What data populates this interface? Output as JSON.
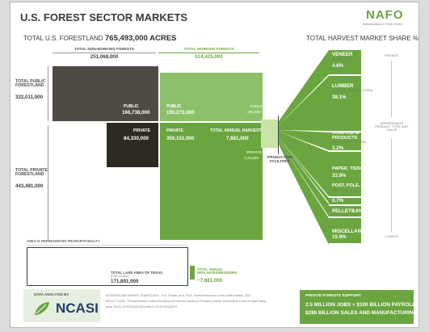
{
  "title": "U.S. FOREST SECTOR MARKETS",
  "logo": {
    "text": "NAFO",
    "tagline": "National Alliance of Forest Owners"
  },
  "total_forestland": {
    "label": "TOTAL U.S. FORESTLAND",
    "value": "765,493,000 ACRES"
  },
  "market_share_title": "TOTAL HARVEST MARKET SHARE %",
  "columns": {
    "non_working": {
      "label": "TOTAL NON-WORKING FORESTS",
      "value": "251,068,000"
    },
    "working": {
      "label": "TOTAL WORKING FORESTS",
      "value": "514,425,000"
    }
  },
  "rows": {
    "public": {
      "label": "TOTAL PUBLIC FORESTLAND",
      "value": "322,011,000"
    },
    "private": {
      "label": "TOTAL PRIVATE FORESTLAND",
      "value": "443,481,000"
    }
  },
  "cells": {
    "nw_public": {
      "label": "PUBLIC",
      "value": "166,738,000"
    },
    "nw_private": {
      "label": "PRIVATE",
      "value": "84,330,000"
    },
    "w_public": {
      "label": "PUBLIC",
      "value": "155,273,000"
    },
    "w_private": {
      "label": "PRIVATE",
      "value": "359,152,000"
    }
  },
  "harvest": {
    "label": "TOTAL ANNUAL HARVEST",
    "value": "7,881,000",
    "public_label": "PUBLIC",
    "public_value": "x00,000",
    "private_label": "PRIVATE",
    "private_value": "7,x0,000"
  },
  "production_facilities": "PRODUCTION FACILITIES",
  "products": [
    {
      "name": "VENEER",
      "sub": "(FURNITURE)",
      "pct": "4.6%"
    },
    {
      "name": "LUMBER",
      "sub": "(HOUSING, CONSTRUCTION)",
      "pct": "38.1%"
    },
    {
      "name": "COMPOSITE PRODUCTS",
      "sub": "(PARTICLEBOARD, OSB)",
      "pct": "3.2%"
    },
    {
      "name": "PAPER, TISSUE, AND PACKAGING",
      "sub": "",
      "pct": "33.9%"
    },
    {
      "name": "POST, POLE, PILING",
      "sub": "(UTILITY POLES)",
      "pct": "0.7%"
    },
    {
      "name": "PELLETS",
      "sub": "",
      "pct": "3.6%"
    },
    {
      "name": "MISCELLANEOUS",
      "sub": "",
      "pct": "15.9%"
    }
  ],
  "value_scale": {
    "highest": "HIGHEST",
    "middle": "APPROXIMATE PRODUCT TYPE UNIT VALUE",
    "lowest": "LOWEST"
  },
  "proportionality_note": "AREA IS REPRESENTED PROPORTIONALITY",
  "texas": {
    "label": "TOTAL LAND AREA OF TEXAS",
    "sub": "(FOR SCALE)",
    "value": "171,891,000"
  },
  "replanted": {
    "label": "TOTAL ANNUAL REPLANTED/REGROWN",
    "value": "~7,881,000"
  },
  "data_analysis_by": "DATA ANALYSIS BY",
  "ncasi": "NCASI",
  "sources": [
    "ACREAGE AND MARKET SHARE DATA : \"FIA: Oswalt, et al. 2019. Forest Resources of the United States, 2017",
    "PELLET DATA : \"Forest2Market. Forest Inventory and Harvest Trends on Privately-Owned Timberlands in the 33 State Study",
    "Area. *FULL CITATIONS AVAILABLE UPON REQUEST"
  ],
  "private_support": {
    "title": "PRIVATE FORESTS SUPPORT:",
    "line1": "2.5 MILLION JOBS + $100 BILLION PAYROLL",
    "line2": "$288 BILLION SALES AND MANUFACTURING"
  },
  "colors": {
    "dark_brown": "#4f4a43",
    "very_dark_brown": "#2e2a23",
    "green": "#6aa53f",
    "light_green": "#8cc16a",
    "very_light_green": "#c9e3a8"
  }
}
